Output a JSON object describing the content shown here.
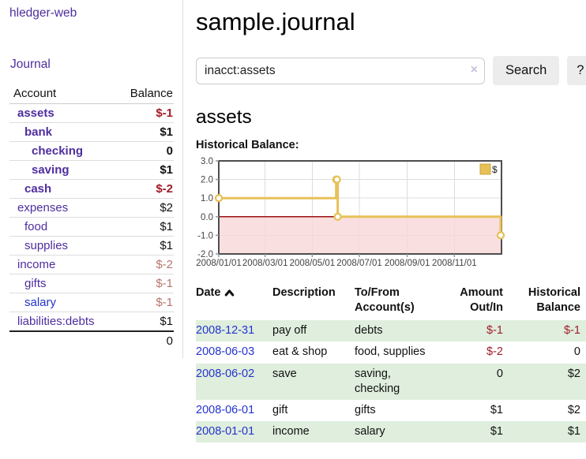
{
  "app": {
    "title": "hledger-web"
  },
  "sidebar": {
    "journal_link": "Journal",
    "accounts_table": {
      "col_account": "Account",
      "col_balance": "Balance",
      "rows": [
        {
          "name": "assets",
          "indent": 0,
          "bold": true,
          "balance": "$-1",
          "neg": true
        },
        {
          "name": "bank",
          "indent": 1,
          "bold": true,
          "balance": "$1"
        },
        {
          "name": "checking",
          "indent": 2,
          "bold": true,
          "balance": "0"
        },
        {
          "name": "saving",
          "indent": 2,
          "bold": true,
          "balance": "$1"
        },
        {
          "name": "cash",
          "indent": 1,
          "bold": true,
          "balance": "$-2",
          "neg": true
        },
        {
          "name": "expenses",
          "indent": 0,
          "balance": "$2"
        },
        {
          "name": "food",
          "indent": 1,
          "balance": "$1"
        },
        {
          "name": "supplies",
          "indent": 1,
          "balance": "$1"
        },
        {
          "name": "income",
          "indent": 0,
          "balance": "$-2",
          "faded_neg": true
        },
        {
          "name": "gifts",
          "indent": 1,
          "balance": "$-1",
          "faded_neg": true
        },
        {
          "name": "salary",
          "indent": 1,
          "balance": "$-1",
          "faded_neg": true,
          "link_blue": true
        },
        {
          "name": "liabilities:debts",
          "indent": 0,
          "balance": "$1"
        }
      ],
      "total": "0"
    }
  },
  "header": {
    "title": "sample.journal"
  },
  "search": {
    "value": "inacct:assets",
    "clear_icon": "×",
    "button_label": "Search",
    "help_label": "?"
  },
  "account_page": {
    "heading": "assets"
  },
  "chart_data": {
    "type": "line",
    "title": "Historical Balance:",
    "step": true,
    "series": [
      {
        "name": "$",
        "color": "#e7c158",
        "points": [
          {
            "date": "2008-01-01",
            "value": 1
          },
          {
            "date": "2008-06-01",
            "value": 2
          },
          {
            "date": "2008-06-02",
            "value": 2
          },
          {
            "date": "2008-06-03",
            "value": 0
          },
          {
            "date": "2008-12-31",
            "value": -1
          }
        ]
      }
    ],
    "x_range": [
      "2008-01-01",
      "2009-01-01"
    ],
    "x_ticks": [
      "2008/01/01",
      "2008/03/01",
      "2008/05/01",
      "2008/07/01",
      "2008/09/01",
      "2008/11/01"
    ],
    "y_range": [
      -2,
      3
    ],
    "y_ticks": [
      3.0,
      2.0,
      1.0,
      0.0,
      -1.0,
      -2.0
    ],
    "grid": true,
    "legend_position": "top-right",
    "zero_line_color": "#991111",
    "below_zero_fill": "#f8d7d7"
  },
  "register_table": {
    "headers": {
      "date": "Date",
      "description": "Description",
      "account_line1": "To/From",
      "account_line2": "Account(s)",
      "amount_line1": "Amount",
      "amount_line2": "Out/In",
      "balance_line1": "Historical",
      "balance_line2": "Balance"
    },
    "rows": [
      {
        "date": "2008-12-31",
        "description": "pay off",
        "accounts": "debts",
        "amount": "$-1",
        "amount_neg": true,
        "balance": "$-1",
        "balance_neg": true
      },
      {
        "date": "2008-06-03",
        "description": "eat & shop",
        "accounts": "food, supplies",
        "amount": "$-2",
        "amount_neg": true,
        "balance": "0"
      },
      {
        "date": "2008-06-02",
        "description": "save",
        "accounts": "saving, checking",
        "amount": "0",
        "balance": "$2"
      },
      {
        "date": "2008-06-01",
        "description": "gift",
        "accounts": "gifts",
        "amount": "$1",
        "balance": "$2"
      },
      {
        "date": "2008-01-01",
        "description": "income",
        "accounts": "salary",
        "amount": "$1",
        "balance": "$1"
      }
    ]
  },
  "colors": {
    "link_purple": "#4f2d9f",
    "link_blue": "#2433cc",
    "negative_red": "#a01c28",
    "faded_negative_red": "#b5766e",
    "row_stripe_green": "#dfeedd",
    "button_gray": "#ececec",
    "chart_line_gold": "#e7c158"
  }
}
